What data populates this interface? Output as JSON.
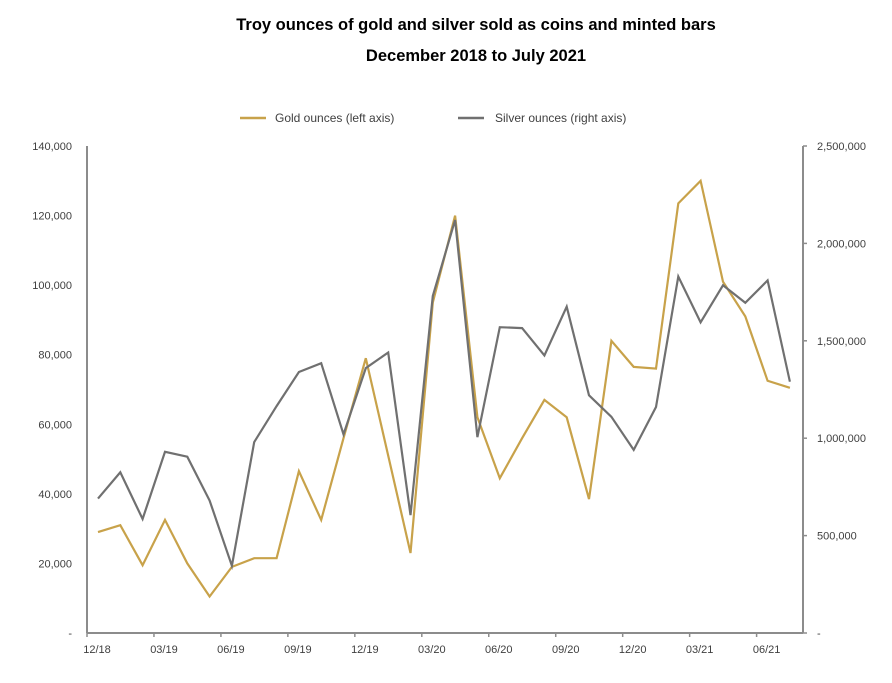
{
  "chart_data": {
    "type": "line",
    "title": "Troy ounces of gold and silver sold as coins and minted bars",
    "subtitle": "December 2018 to July 2021",
    "xlabel": "",
    "ylabel": "",
    "y2label": "",
    "legend_position": "top-center",
    "grid": false,
    "x": [
      "12/18",
      "01/19",
      "02/19",
      "03/19",
      "04/19",
      "05/19",
      "06/19",
      "07/19",
      "08/19",
      "09/19",
      "10/19",
      "11/19",
      "12/19",
      "01/20",
      "02/20",
      "03/20",
      "04/20",
      "05/20",
      "06/20",
      "07/20",
      "08/20",
      "09/20",
      "10/20",
      "11/20",
      "12/20",
      "01/21",
      "02/21",
      "03/21",
      "04/21",
      "05/21",
      "06/21",
      "07/21"
    ],
    "x_tick_labels": [
      "12/18",
      "03/19",
      "06/19",
      "09/19",
      "12/19",
      "03/20",
      "06/20",
      "09/20",
      "12/20",
      "03/21",
      "06/21"
    ],
    "y_left": {
      "range": [
        0,
        140000
      ],
      "ticks": [
        0,
        20000,
        40000,
        60000,
        80000,
        100000,
        120000,
        140000
      ],
      "tick_labels": [
        "-",
        "20,000",
        "40,000",
        "60,000",
        "80,000",
        "100,000",
        "120,000",
        "140,000"
      ]
    },
    "y_right": {
      "range": [
        0,
        2500000
      ],
      "ticks": [
        0,
        500000,
        1000000,
        1500000,
        2000000,
        2500000
      ],
      "tick_labels": [
        "-",
        "500,000",
        "1,000,000",
        "1,500,000",
        "2,000,000",
        "2,500,000"
      ]
    },
    "series": [
      {
        "name": "Gold ounces (left axis)",
        "axis": "left",
        "color": "#C8A24A",
        "values": [
          29000,
          31000,
          19500,
          32500,
          20000,
          10500,
          19000,
          21500,
          21500,
          46500,
          32500,
          56000,
          79000,
          51000,
          23000,
          95000,
          120000,
          62000,
          44500,
          56000,
          67000,
          62000,
          38500,
          84000,
          76500,
          76000,
          123500,
          130000,
          101000,
          91000,
          72500,
          70500
        ]
      },
      {
        "name": "Silver ounces (right axis)",
        "axis": "right",
        "color": "#707070",
        "values": [
          690000,
          825000,
          585000,
          930000,
          905000,
          680000,
          345000,
          980000,
          1165000,
          1340000,
          1385000,
          1020000,
          1360000,
          1440000,
          605000,
          1730000,
          2120000,
          1005000,
          1570000,
          1565000,
          1425000,
          1675000,
          1220000,
          1110000,
          940000,
          1160000,
          1830000,
          1595000,
          1785000,
          1695000,
          1810000,
          1290000
        ]
      }
    ]
  }
}
